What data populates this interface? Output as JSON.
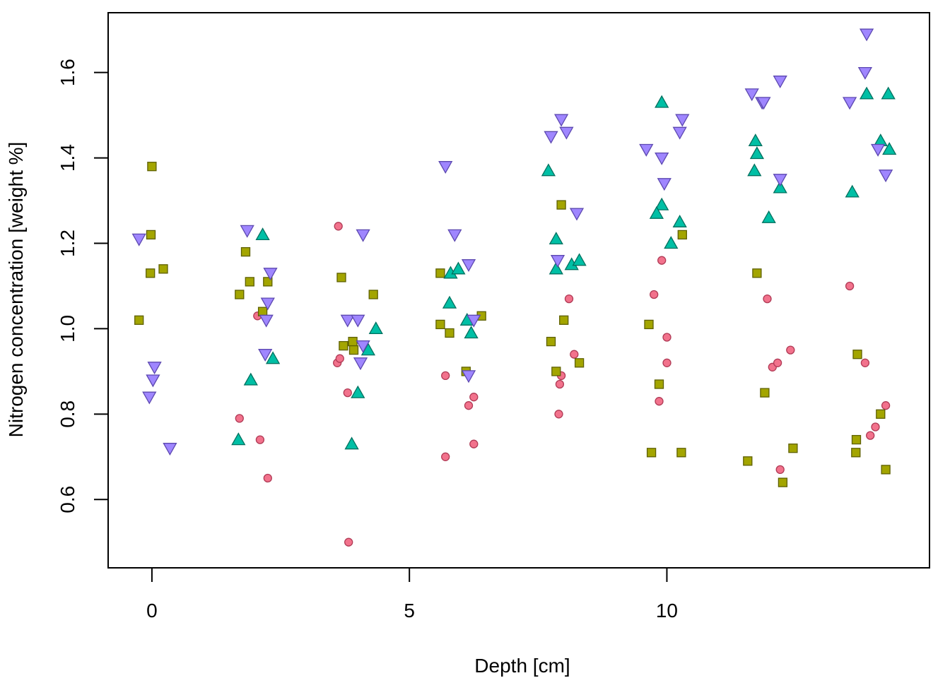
{
  "chart_data": {
    "type": "scatter",
    "title": "",
    "xlabel": "Depth [cm]",
    "ylabel": "Nitrogen concentration [weight %]",
    "xlim": [
      -0.85,
      15.1
    ],
    "ylim": [
      0.44,
      1.74
    ],
    "x_ticks": [
      0,
      5,
      10
    ],
    "x_tick_labels": [
      "0",
      "5",
      "10"
    ],
    "y_ticks": [
      0.6,
      0.8,
      1.0,
      1.2,
      1.4,
      1.6
    ],
    "y_tick_labels": [
      "0.6",
      "0.8",
      "1.0",
      "1.2",
      "1.4",
      "1.6"
    ],
    "grid": false,
    "legend": "none",
    "series": [
      {
        "marker": "circle",
        "color": "#F2728C",
        "stroke": "#B03A55",
        "points": [
          [
            2.05,
            1.03
          ],
          [
            1.7,
            0.79
          ],
          [
            2.1,
            0.74
          ],
          [
            2.25,
            0.65
          ],
          [
            3.62,
            1.24
          ],
          [
            3.6,
            0.92
          ],
          [
            3.65,
            0.93
          ],
          [
            3.8,
            0.85
          ],
          [
            3.82,
            0.5
          ],
          [
            5.7,
            0.89
          ],
          [
            5.7,
            0.7
          ],
          [
            6.15,
            0.82
          ],
          [
            6.25,
            0.84
          ],
          [
            6.25,
            0.73
          ],
          [
            8.1,
            1.07
          ],
          [
            8.2,
            0.94
          ],
          [
            7.95,
            0.89
          ],
          [
            7.92,
            0.87
          ],
          [
            7.9,
            0.8
          ],
          [
            9.9,
            1.16
          ],
          [
            9.75,
            1.08
          ],
          [
            10.0,
            0.98
          ],
          [
            10.0,
            0.92
          ],
          [
            9.85,
            0.83
          ],
          [
            11.95,
            1.07
          ],
          [
            12.05,
            0.91
          ],
          [
            12.15,
            0.92
          ],
          [
            12.4,
            0.95
          ],
          [
            12.2,
            0.67
          ],
          [
            13.55,
            1.1
          ],
          [
            13.85,
            0.92
          ],
          [
            14.05,
            0.77
          ],
          [
            13.95,
            0.75
          ],
          [
            14.25,
            0.82
          ]
        ]
      },
      {
        "marker": "square",
        "color": "#A3A500",
        "stroke": "#5E6000",
        "points": [
          [
            0.0,
            1.38
          ],
          [
            -0.02,
            1.22
          ],
          [
            0.22,
            1.14
          ],
          [
            -0.03,
            1.13
          ],
          [
            -0.25,
            1.02
          ],
          [
            1.82,
            1.18
          ],
          [
            1.9,
            1.11
          ],
          [
            2.25,
            1.11
          ],
          [
            1.7,
            1.08
          ],
          [
            2.15,
            1.04
          ],
          [
            3.68,
            1.12
          ],
          [
            3.72,
            0.96
          ],
          [
            3.9,
            0.97
          ],
          [
            3.92,
            0.95
          ],
          [
            4.3,
            1.08
          ],
          [
            5.6,
            1.13
          ],
          [
            5.6,
            1.01
          ],
          [
            5.78,
            0.99
          ],
          [
            6.1,
            0.9
          ],
          [
            6.4,
            1.03
          ],
          [
            7.95,
            1.29
          ],
          [
            7.75,
            0.97
          ],
          [
            8.0,
            1.02
          ],
          [
            7.85,
            0.9
          ],
          [
            8.3,
            0.92
          ],
          [
            9.65,
            1.01
          ],
          [
            9.85,
            0.87
          ],
          [
            9.7,
            0.71
          ],
          [
            10.3,
            1.22
          ],
          [
            10.28,
            0.71
          ],
          [
            11.75,
            1.13
          ],
          [
            11.9,
            0.85
          ],
          [
            11.57,
            0.69
          ],
          [
            12.25,
            0.64
          ],
          [
            12.45,
            0.72
          ],
          [
            13.7,
            0.94
          ],
          [
            13.68,
            0.74
          ],
          [
            13.67,
            0.71
          ],
          [
            14.15,
            0.8
          ],
          [
            14.25,
            0.67
          ]
        ]
      },
      {
        "marker": "triangle-up",
        "color": "#00BFA5",
        "stroke": "#00705F",
        "points": [
          [
            2.15,
            1.22
          ],
          [
            2.35,
            0.93
          ],
          [
            1.92,
            0.88
          ],
          [
            1.68,
            0.74
          ],
          [
            4.35,
            1.0
          ],
          [
            4.2,
            0.95
          ],
          [
            4.0,
            0.85
          ],
          [
            3.88,
            0.73
          ],
          [
            5.8,
            1.13
          ],
          [
            5.95,
            1.14
          ],
          [
            5.78,
            1.06
          ],
          [
            6.12,
            1.02
          ],
          [
            6.2,
            0.99
          ],
          [
            7.7,
            1.37
          ],
          [
            7.85,
            1.21
          ],
          [
            7.85,
            1.14
          ],
          [
            8.15,
            1.15
          ],
          [
            8.3,
            1.16
          ],
          [
            9.9,
            1.53
          ],
          [
            9.9,
            1.29
          ],
          [
            9.8,
            1.27
          ],
          [
            10.25,
            1.25
          ],
          [
            10.08,
            1.2
          ],
          [
            11.72,
            1.44
          ],
          [
            11.75,
            1.41
          ],
          [
            11.7,
            1.37
          ],
          [
            11.98,
            1.26
          ],
          [
            12.2,
            1.33
          ],
          [
            13.6,
            1.32
          ],
          [
            13.88,
            1.55
          ],
          [
            14.15,
            1.44
          ],
          [
            14.3,
            1.55
          ],
          [
            14.32,
            1.42
          ]
        ]
      },
      {
        "marker": "triangle-down",
        "color": "#9F86FF",
        "stroke": "#5C48B0",
        "points": [
          [
            -0.25,
            1.21
          ],
          [
            0.05,
            0.91
          ],
          [
            0.02,
            0.88
          ],
          [
            -0.05,
            0.84
          ],
          [
            0.35,
            0.72
          ],
          [
            1.85,
            1.23
          ],
          [
            2.3,
            1.13
          ],
          [
            2.25,
            1.06
          ],
          [
            2.22,
            1.02
          ],
          [
            2.2,
            0.94
          ],
          [
            4.1,
            1.22
          ],
          [
            3.8,
            1.02
          ],
          [
            4.0,
            1.02
          ],
          [
            4.1,
            0.96
          ],
          [
            4.05,
            0.92
          ],
          [
            5.7,
            1.38
          ],
          [
            5.88,
            1.22
          ],
          [
            6.15,
            1.15
          ],
          [
            6.25,
            1.02
          ],
          [
            6.15,
            0.89
          ],
          [
            7.95,
            1.49
          ],
          [
            7.75,
            1.45
          ],
          [
            8.05,
            1.46
          ],
          [
            8.25,
            1.27
          ],
          [
            7.88,
            1.16
          ],
          [
            9.6,
            1.42
          ],
          [
            9.9,
            1.4
          ],
          [
            9.95,
            1.34
          ],
          [
            10.3,
            1.49
          ],
          [
            10.25,
            1.46
          ],
          [
            11.65,
            1.55
          ],
          [
            11.85,
            1.53
          ],
          [
            12.2,
            1.58
          ],
          [
            12.2,
            1.35
          ],
          [
            11.88,
            1.53
          ],
          [
            13.55,
            1.53
          ],
          [
            13.88,
            1.69
          ],
          [
            13.85,
            1.6
          ],
          [
            14.1,
            1.42
          ],
          [
            14.25,
            1.36
          ]
        ]
      }
    ]
  }
}
